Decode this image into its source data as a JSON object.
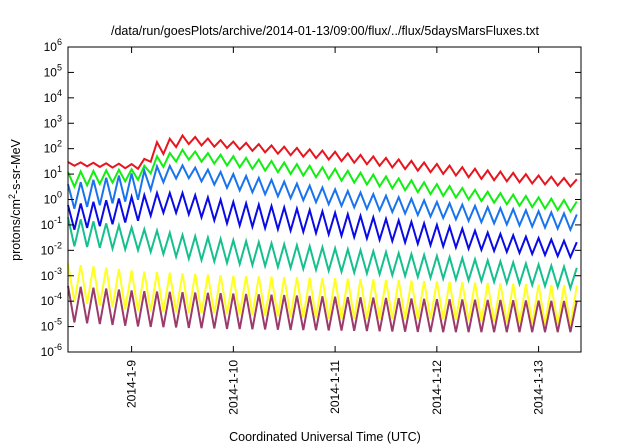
{
  "chart_data": {
    "type": "line",
    "title": "/data/run/goesPlots/archive/2014-01-13/09:00/flux/../flux/5daysMarsFluxes.txt",
    "xlabel": "Coordinated Universal Time (UTC)",
    "ylabel_parts": {
      "base": "protons/cm",
      "sup": "2",
      "rest": "-s-sr-MeV"
    },
    "y_scale": "log",
    "ylim": [
      1e-06,
      1000000
    ],
    "y_ticks": [
      {
        "base": "10",
        "exp": "-6"
      },
      {
        "base": "10",
        "exp": "-5"
      },
      {
        "base": "10",
        "exp": "-4"
      },
      {
        "base": "10",
        "exp": "-3"
      },
      {
        "base": "10",
        "exp": "-2"
      },
      {
        "base": "10",
        "exp": "-1"
      },
      {
        "base": "10",
        "exp": "0"
      },
      {
        "base": "10",
        "exp": "1"
      },
      {
        "base": "10",
        "exp": "2"
      },
      {
        "base": "10",
        "exp": "3"
      },
      {
        "base": "10",
        "exp": "4"
      },
      {
        "base": "10",
        "exp": "5"
      },
      {
        "base": "10",
        "exp": "6"
      }
    ],
    "xlim": [
      "2014-01-08 09:00",
      "2014-01-13 10:00"
    ],
    "x_ticks": [
      "2014-1-9",
      "2014-1-10",
      "2014-1-11",
      "2014-1-12",
      "2014-1-13"
    ],
    "grid": false,
    "legend": "none",
    "series": [
      {
        "color": "#e8141e",
        "envelope": [
          [
            "2014-01-08 09:00",
            22,
            30
          ],
          [
            "2014-01-09 02:00",
            16,
            24
          ],
          [
            "2014-01-09 06:00",
            45,
            180
          ],
          [
            "2014-01-09 12:00",
            160,
            330
          ],
          [
            "2014-01-10 00:00",
            100,
            190
          ],
          [
            "2014-01-11 00:00",
            35,
            75
          ],
          [
            "2014-01-12 00:00",
            11,
            25
          ],
          [
            "2014-01-12 12:00",
            6,
            14
          ],
          [
            "2014-01-13 10:00",
            3,
            6
          ]
        ]
      },
      {
        "color": "#11ee11",
        "envelope": [
          [
            "2014-01-08 09:00",
            3,
            12
          ],
          [
            "2014-01-09 02:00",
            6,
            16
          ],
          [
            "2014-01-09 06:00",
            15,
            50
          ],
          [
            "2014-01-09 12:00",
            40,
            90
          ],
          [
            "2014-01-10 00:00",
            20,
            50
          ],
          [
            "2014-01-11 00:00",
            6,
            16
          ],
          [
            "2014-01-12 00:00",
            1.5,
            4
          ],
          [
            "2014-01-12 12:00",
            0.8,
            2
          ],
          [
            "2014-01-13 10:00",
            0.3,
            0.8
          ]
        ]
      },
      {
        "color": "#1a73ee",
        "envelope": [
          [
            "2014-01-08 09:00",
            0.4,
            4
          ],
          [
            "2014-01-09 02:00",
            1,
            12
          ],
          [
            "2014-01-09 06:00",
            4,
            20
          ],
          [
            "2014-01-09 12:00",
            8,
            22
          ],
          [
            "2014-01-10 00:00",
            2.5,
            10
          ],
          [
            "2014-01-11 00:00",
            0.6,
            2.5
          ],
          [
            "2014-01-12 00:00",
            0.2,
            0.8
          ],
          [
            "2014-01-12 12:00",
            0.12,
            0.5
          ],
          [
            "2014-01-13 10:00",
            0.06,
            0.25
          ]
        ]
      },
      {
        "color": "#0a0ae6",
        "envelope": [
          [
            "2014-01-08 09:00",
            0.06,
            0.6
          ],
          [
            "2014-01-09 02:00",
            0.15,
            1.4
          ],
          [
            "2014-01-09 06:00",
            0.3,
            1.8
          ],
          [
            "2014-01-09 12:00",
            0.3,
            1.8
          ],
          [
            "2014-01-10 00:00",
            0.1,
            0.8
          ],
          [
            "2014-01-11 00:00",
            0.04,
            0.3
          ],
          [
            "2014-01-12 00:00",
            0.015,
            0.1
          ],
          [
            "2014-01-12 12:00",
            0.01,
            0.05
          ],
          [
            "2014-01-13 10:00",
            0.005,
            0.02
          ]
        ]
      },
      {
        "color": "#16c08e",
        "envelope": [
          [
            "2014-01-08 09:00",
            0.015,
            0.2
          ],
          [
            "2014-01-09 02:00",
            0.01,
            0.07
          ],
          [
            "2014-01-09 06:00",
            0.008,
            0.06
          ],
          [
            "2014-01-09 12:00",
            0.005,
            0.04
          ],
          [
            "2014-01-10 00:00",
            0.003,
            0.025
          ],
          [
            "2014-01-11 00:00",
            0.0015,
            0.012
          ],
          [
            "2014-01-12 00:00",
            0.0008,
            0.006
          ],
          [
            "2014-01-12 12:00",
            0.0006,
            0.004
          ],
          [
            "2014-01-13 10:00",
            0.0003,
            0.002
          ]
        ]
      },
      {
        "color": "#ffff22",
        "envelope": [
          [
            "2014-01-08 09:00",
            0.0001,
            0.003
          ],
          [
            "2014-01-09 02:00",
            4e-05,
            0.0015
          ],
          [
            "2014-01-10 00:00",
            3e-05,
            0.001
          ],
          [
            "2014-01-11 00:00",
            2e-05,
            0.0008
          ],
          [
            "2014-01-12 00:00",
            2e-05,
            0.0006
          ],
          [
            "2014-01-13 10:00",
            1e-05,
            0.0004
          ]
        ]
      },
      {
        "color": "#9c3a6c",
        "envelope": [
          [
            "2014-01-08 09:00",
            1.5e-05,
            0.0004
          ],
          [
            "2014-01-09 02:00",
            1e-05,
            0.00025
          ],
          [
            "2014-01-10 00:00",
            8e-06,
            0.0002
          ],
          [
            "2014-01-11 00:00",
            7e-06,
            0.00015
          ],
          [
            "2014-01-12 00:00",
            6e-06,
            0.00012
          ],
          [
            "2014-01-13 10:00",
            6e-06,
            0.0001
          ]
        ]
      }
    ]
  }
}
